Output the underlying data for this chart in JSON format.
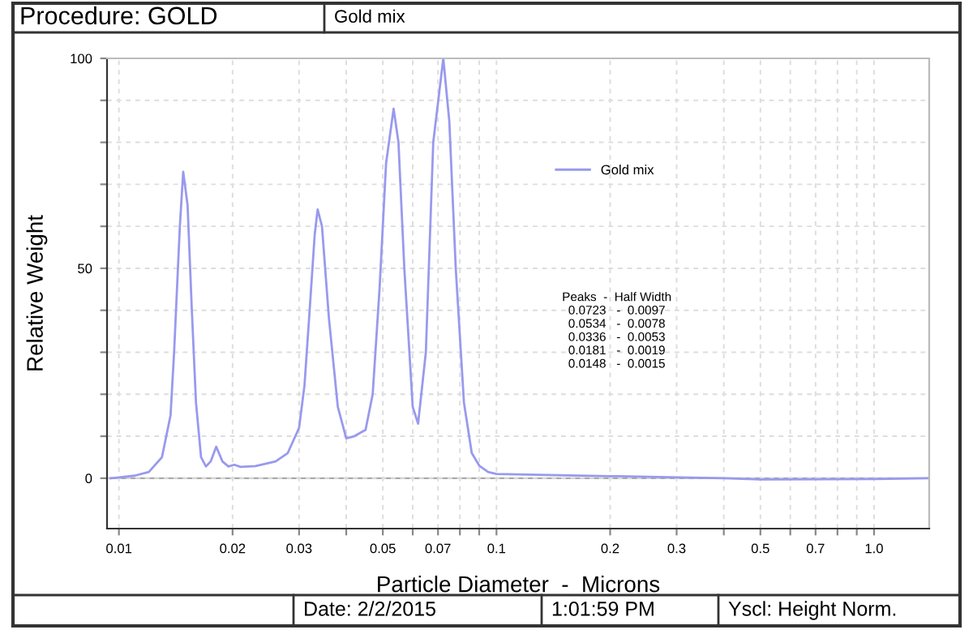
{
  "chart_data": {
    "type": "line",
    "title": "Procedure: GOLD",
    "subtitle": "Gold mix",
    "xlabel": "Particle Diameter  -  Microns",
    "ylabel": "Relative Weight",
    "log": "x",
    "xlim": [
      0.0093,
      1.4
    ],
    "ylim": [
      -12,
      100
    ],
    "xticks": [
      0.01,
      0.02,
      0.03,
      {
        "value": 0.04,
        "label": null
      },
      0.05,
      {
        "value": 0.06,
        "label": null
      },
      0.07,
      {
        "value": 0.08,
        "label": null
      },
      {
        "value": 0.09,
        "label": null
      },
      0.1,
      0.2,
      0.3,
      {
        "value": 0.4,
        "label": null
      },
      0.5,
      {
        "value": 0.6,
        "label": null
      },
      0.7,
      {
        "value": 0.8,
        "label": null
      },
      {
        "value": 0.9,
        "label": null
      },
      {
        "value": 1,
        "label": "1.0"
      }
    ],
    "yticks": [
      0,
      {
        "value": 10,
        "label": null
      },
      {
        "value": 20,
        "label": null
      },
      {
        "value": 30,
        "label": null
      },
      {
        "value": 40,
        "label": null
      },
      50,
      {
        "value": 60,
        "label": null
      },
      {
        "value": 70,
        "label": null
      },
      {
        "value": 80,
        "label": null
      },
      {
        "value": 90,
        "label": null
      },
      100
    ],
    "grid": true,
    "legend": "top right",
    "marker": "none",
    "line_style": "solid",
    "x": [
      0.0095,
      0.01,
      0.011,
      0.012,
      0.013,
      0.0137,
      0.014,
      0.0145,
      0.0148,
      0.0152,
      0.0156,
      0.016,
      0.0165,
      0.017,
      0.0175,
      0.0181,
      0.0188,
      0.0195,
      0.0202,
      0.021,
      0.023,
      0.026,
      0.028,
      0.03,
      0.031,
      0.032,
      0.033,
      0.0336,
      0.0345,
      0.036,
      0.038,
      0.04,
      0.042,
      0.045,
      0.047,
      0.049,
      0.051,
      0.0534,
      0.055,
      0.057,
      0.06,
      0.062,
      0.065,
      0.068,
      0.0723,
      0.075,
      0.078,
      0.082,
      0.086,
      0.09,
      0.095,
      0.1,
      0.2,
      0.4,
      0.5,
      1.0,
      1.4
    ],
    "series": [
      {
        "name": "Gold mix",
        "color": "#9999ee",
        "values": [
          0,
          0.2,
          0.6,
          1.5,
          5,
          15,
          30,
          60,
          73,
          65,
          40,
          18,
          5,
          2.8,
          4,
          7.5,
          4,
          2.8,
          3.2,
          2.7,
          2.9,
          4,
          6,
          12,
          22,
          40,
          58,
          64,
          60,
          38,
          17,
          9.5,
          10,
          11.5,
          20,
          45,
          75,
          88,
          80,
          50,
          17,
          13,
          30,
          80,
          100,
          85,
          50,
          18,
          6,
          3,
          1.5,
          1,
          0.5,
          0,
          -0.3,
          -0.2,
          0
        ]
      }
    ],
    "annotations": [
      "Peaks  -  Half Width\n0.0723   -  0.0097\n0.0534   -  0.0078\n0.0336   -  0.0053\n0.0181   -  0.0019\n0.0148   -  0.0015",
      "Date: 2/2/2015",
      "1:01:59 PM",
      "Yscl: Height Norm."
    ]
  }
}
